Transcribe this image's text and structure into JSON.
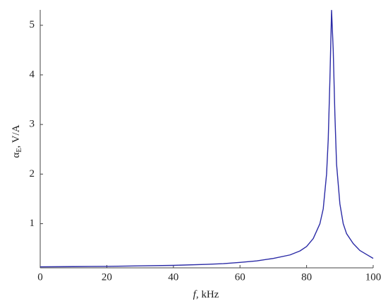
{
  "chart_data": {
    "type": "line",
    "xlabel": {
      "var": "f",
      "unit": ", kHz"
    },
    "ylabel": {
      "var": "α",
      "sub": "E",
      "unit": ", V/A"
    },
    "x": [
      0,
      10,
      20,
      30,
      40,
      50,
      55,
      60,
      65,
      70,
      75,
      78,
      80,
      82,
      84,
      85,
      86,
      86.5,
      87,
      87.5,
      88,
      88.5,
      89,
      90,
      91,
      92,
      94,
      96,
      98,
      100
    ],
    "series": [
      {
        "color": "#2b2ba6",
        "values": [
          0.13,
          0.135,
          0.14,
          0.15,
          0.16,
          0.18,
          0.195,
          0.22,
          0.25,
          0.3,
          0.37,
          0.45,
          0.54,
          0.7,
          1.0,
          1.3,
          2.0,
          2.7,
          3.9,
          5.3,
          4.5,
          3.2,
          2.2,
          1.4,
          1.0,
          0.8,
          0.6,
          0.46,
          0.38,
          0.3
        ]
      }
    ],
    "xlim": [
      0,
      100
    ],
    "xticks": [
      0,
      20,
      40,
      60,
      80,
      100
    ],
    "ylim": [
      0.11,
      5.31
    ],
    "yticks": [
      1,
      2,
      3,
      4,
      5
    ],
    "grid": false
  }
}
